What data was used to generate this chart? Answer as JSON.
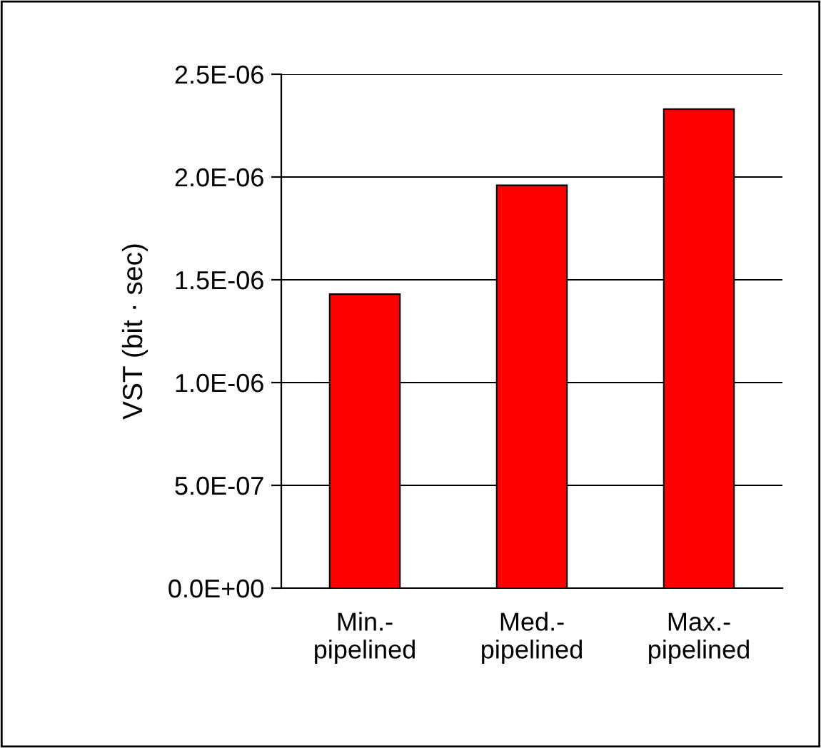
{
  "chart_data": {
    "type": "bar",
    "ylabel": "VST (bit · sec)",
    "categories": [
      "Min.-\npipelined",
      "Med.-\npipelined",
      "Max.-\npipelined"
    ],
    "values": [
      1.43e-06,
      1.96e-06,
      2.33e-06
    ],
    "color": "#ff0000",
    "ylim": [
      0,
      2.5e-06
    ],
    "yticks": [
      {
        "value": 0,
        "label": "0.0E+00"
      },
      {
        "value": 5e-07,
        "label": "5.0E-07"
      },
      {
        "value": 1e-06,
        "label": "1.0E-06"
      },
      {
        "value": 1.5e-06,
        "label": "1.5E-06"
      },
      {
        "value": 2e-06,
        "label": "2.0E-06"
      },
      {
        "value": 2.5e-06,
        "label": "2.5E-06"
      }
    ],
    "grid": "y",
    "legend": false
  }
}
